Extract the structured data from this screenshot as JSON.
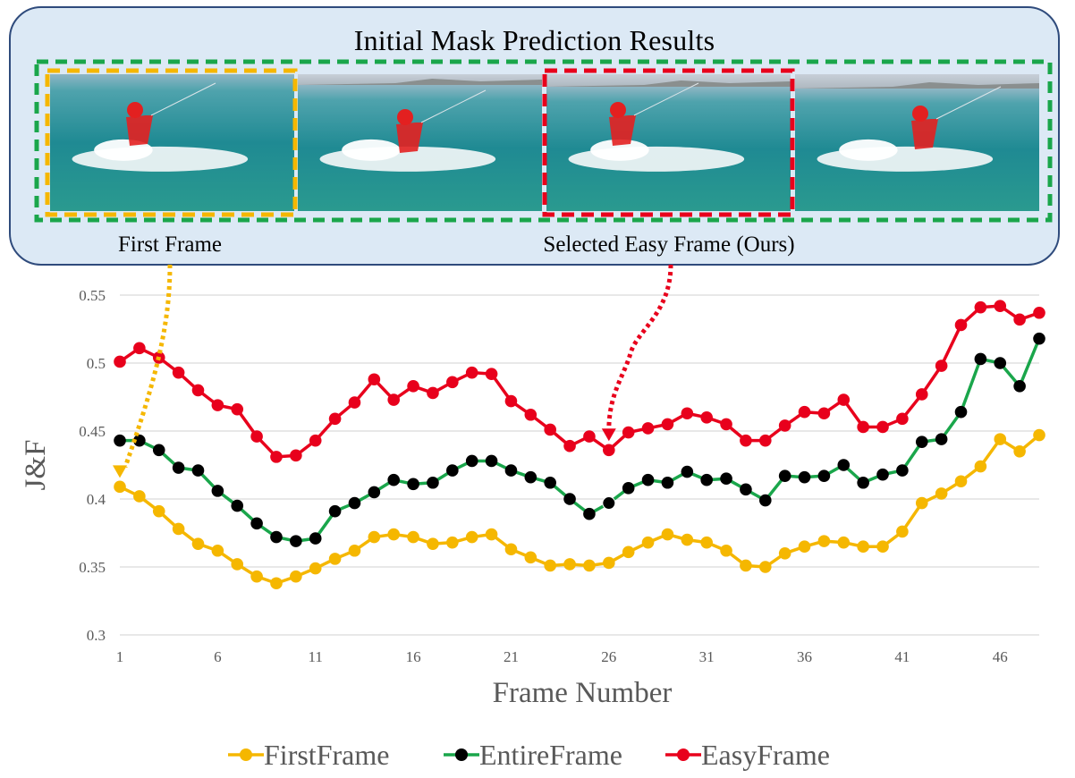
{
  "panel": {
    "title": "Initial Mask Prediction Results",
    "first_frame_label": "First Frame",
    "easy_frame_label": "Selected Easy Frame (Ours)",
    "colors": {
      "first": "#f5b700",
      "entire": "#1aa64b",
      "easy": "#e8001c",
      "box_fill": "#dce9f5"
    }
  },
  "chart_data": {
    "type": "line",
    "xlabel": "Frame Number",
    "ylabel": "J&F",
    "x": [
      1,
      2,
      3,
      4,
      5,
      6,
      7,
      8,
      9,
      10,
      11,
      12,
      13,
      14,
      15,
      16,
      17,
      18,
      19,
      20,
      21,
      22,
      23,
      24,
      25,
      26,
      27,
      28,
      29,
      30,
      31,
      32,
      33,
      34,
      35,
      36,
      37,
      38,
      39,
      40,
      41,
      42,
      43,
      44,
      45,
      46,
      47,
      48
    ],
    "x_ticks": [
      1,
      6,
      11,
      16,
      21,
      26,
      31,
      36,
      41,
      46
    ],
    "y_ticks": [
      0.3,
      0.35,
      0.4,
      0.45,
      0.5,
      0.55
    ],
    "y_tick_labels": [
      "0.3",
      "0.35",
      "0.4",
      "0.45",
      "0.5",
      "0.55"
    ],
    "ylim": [
      0.3,
      0.55
    ],
    "grid": true,
    "legend_position": "bottom",
    "series": [
      {
        "name": "FirstFrame",
        "line_color": "#f5b700",
        "marker_color": "#f5b700",
        "values": [
          0.409,
          0.402,
          0.391,
          0.378,
          0.367,
          0.362,
          0.352,
          0.343,
          0.338,
          0.343,
          0.349,
          0.356,
          0.362,
          0.372,
          0.374,
          0.372,
          0.367,
          0.368,
          0.372,
          0.374,
          0.363,
          0.357,
          0.351,
          0.352,
          0.351,
          0.353,
          0.361,
          0.368,
          0.374,
          0.37,
          0.368,
          0.362,
          0.351,
          0.35,
          0.36,
          0.365,
          0.369,
          0.368,
          0.365,
          0.365,
          0.376,
          0.397,
          0.404,
          0.413,
          0.424,
          0.444,
          0.435,
          0.447
        ]
      },
      {
        "name": "EntireFrame",
        "line_color": "#1aa64b",
        "marker_color": "#000000",
        "values": [
          0.443,
          0.443,
          0.436,
          0.423,
          0.421,
          0.406,
          0.395,
          0.382,
          0.372,
          0.369,
          0.371,
          0.391,
          0.397,
          0.405,
          0.414,
          0.411,
          0.412,
          0.421,
          0.428,
          0.428,
          0.421,
          0.416,
          0.412,
          0.4,
          0.389,
          0.397,
          0.408,
          0.414,
          0.412,
          0.42,
          0.414,
          0.415,
          0.407,
          0.399,
          0.417,
          0.416,
          0.417,
          0.425,
          0.412,
          0.418,
          0.421,
          0.442,
          0.444,
          0.464,
          0.503,
          0.5,
          0.483,
          0.518
        ]
      },
      {
        "name": "EasyFrame",
        "line_color": "#e8001c",
        "marker_color": "#e8001c",
        "values": [
          0.501,
          0.511,
          0.504,
          0.493,
          0.48,
          0.469,
          0.466,
          0.446,
          0.431,
          0.432,
          0.443,
          0.459,
          0.471,
          0.488,
          0.473,
          0.483,
          0.478,
          0.486,
          0.493,
          0.492,
          0.472,
          0.462,
          0.451,
          0.439,
          0.446,
          0.436,
          0.449,
          0.452,
          0.455,
          0.463,
          0.46,
          0.455,
          0.443,
          0.443,
          0.454,
          0.464,
          0.463,
          0.473,
          0.453,
          0.453,
          0.459,
          0.477,
          0.498,
          0.528,
          0.541,
          0.542,
          0.532,
          0.537
        ]
      }
    ]
  }
}
